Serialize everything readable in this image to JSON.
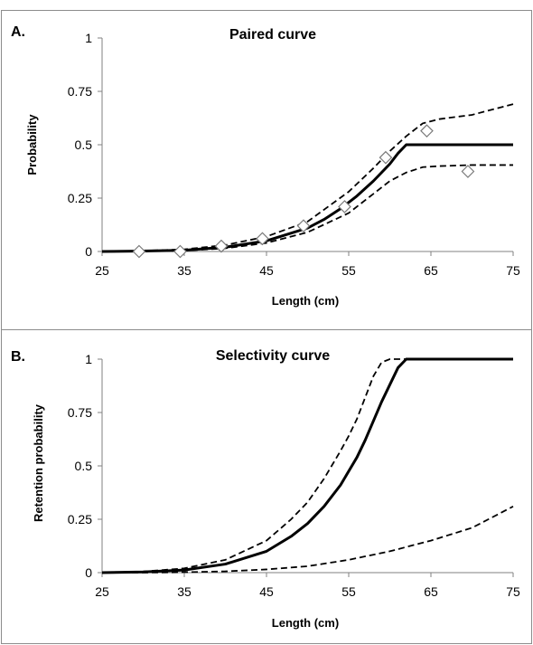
{
  "chart_data": [
    {
      "panel_label": "A.",
      "type": "line",
      "title": "Paired curve",
      "xlabel": "Length (cm)",
      "ylabel": "Probability",
      "xlim": [
        25,
        75
      ],
      "ylim": [
        0,
        1
      ],
      "x_ticks": [
        "25",
        "35",
        "45",
        "55",
        "65",
        "75"
      ],
      "y_ticks": [
        "0",
        "0.25",
        "0.5",
        "0.75",
        "1"
      ],
      "grid": false,
      "legend": "none",
      "series": [
        {
          "style": "solid",
          "x": [
            25,
            30,
            35,
            40,
            45,
            50,
            52,
            54,
            56,
            58,
            60,
            61,
            62,
            65,
            70,
            75
          ],
          "y": [
            0.0,
            0.002,
            0.006,
            0.02,
            0.05,
            0.11,
            0.15,
            0.2,
            0.26,
            0.33,
            0.41,
            0.46,
            0.5,
            0.5,
            0.5,
            0.5
          ]
        },
        {
          "style": "dashed",
          "x": [
            25,
            30,
            35,
            40,
            45,
            50,
            55,
            58,
            60,
            62,
            64,
            66,
            70,
            75
          ],
          "y": [
            0.0,
            0.003,
            0.01,
            0.03,
            0.07,
            0.14,
            0.28,
            0.39,
            0.47,
            0.54,
            0.6,
            0.62,
            0.64,
            0.69
          ]
        },
        {
          "style": "dashed",
          "x": [
            25,
            30,
            35,
            40,
            45,
            50,
            55,
            58,
            60,
            62,
            64,
            66,
            70,
            75
          ],
          "y": [
            0.0,
            0.001,
            0.004,
            0.015,
            0.04,
            0.09,
            0.18,
            0.27,
            0.33,
            0.37,
            0.395,
            0.4,
            0.405,
            0.405
          ]
        },
        {
          "style": "markers",
          "marker": "diamond",
          "x": [
            29.5,
            34.5,
            39.5,
            44.5,
            49.5,
            54.5,
            59.5,
            64.5,
            69.5
          ],
          "y": [
            0.0,
            0.0,
            0.025,
            0.06,
            0.12,
            0.21,
            0.44,
            0.565,
            0.375
          ]
        }
      ]
    },
    {
      "panel_label": "B.",
      "type": "line",
      "title": "Selectivity curve",
      "xlabel": "Length (cm)",
      "ylabel": "Retention probability",
      "xlim": [
        25,
        75
      ],
      "ylim": [
        0,
        1
      ],
      "x_ticks": [
        "25",
        "35",
        "45",
        "55",
        "65",
        "75"
      ],
      "y_ticks": [
        "0",
        "0.25",
        "0.5",
        "0.75",
        "1"
      ],
      "grid": false,
      "legend": "none",
      "series": [
        {
          "style": "solid",
          "x": [
            25,
            30,
            35,
            40,
            45,
            48,
            50,
            52,
            54,
            56,
            57,
            58,
            59,
            60,
            61,
            62,
            65,
            70,
            75
          ],
          "y": [
            0.0,
            0.003,
            0.012,
            0.04,
            0.1,
            0.17,
            0.23,
            0.31,
            0.41,
            0.54,
            0.62,
            0.71,
            0.8,
            0.88,
            0.96,
            1.0,
            1.0,
            1.0,
            1.0
          ]
        },
        {
          "style": "dashed",
          "x": [
            25,
            30,
            35,
            40,
            45,
            48,
            50,
            52,
            54,
            55,
            56,
            57,
            58,
            59,
            60,
            62,
            65,
            70,
            75
          ],
          "y": [
            0.0,
            0.005,
            0.02,
            0.06,
            0.15,
            0.25,
            0.33,
            0.44,
            0.57,
            0.64,
            0.72,
            0.82,
            0.92,
            0.985,
            1.0,
            1.0,
            1.0,
            1.0,
            1.0
          ]
        },
        {
          "style": "dashed",
          "x": [
            25,
            30,
            35,
            40,
            45,
            50,
            55,
            60,
            65,
            70,
            72,
            75
          ],
          "y": [
            0.0,
            0.0,
            0.002,
            0.006,
            0.015,
            0.03,
            0.06,
            0.1,
            0.15,
            0.21,
            0.25,
            0.31
          ]
        }
      ]
    }
  ]
}
